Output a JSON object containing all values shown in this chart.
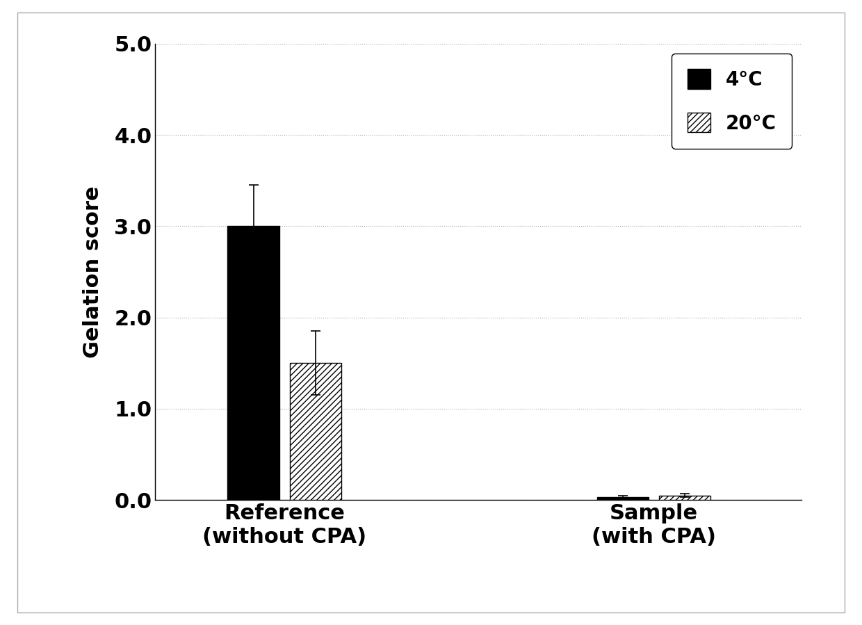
{
  "categories": [
    "Reference\n(without CPA)",
    "Sample\n(with CPA)"
  ],
  "values_4C": [
    3.0,
    0.03
  ],
  "values_20C": [
    1.5,
    0.05
  ],
  "error_4C": [
    0.45,
    0.02
  ],
  "error_20C": [
    0.35,
    0.02
  ],
  "bar_color_4C": "#000000",
  "bar_color_20C": "#ffffff",
  "hatch_20C": "////",
  "ylabel": "Gelation score",
  "ylim": [
    0.0,
    5.0
  ],
  "yticks": [
    0.0,
    1.0,
    2.0,
    3.0,
    4.0,
    5.0
  ],
  "legend_labels": [
    "4°C",
    "20°C"
  ],
  "bar_width": 0.28,
  "background_color": "#ffffff",
  "grid_color": "#aaaaaa",
  "tick_labelsize": 22,
  "axis_labelsize": 22,
  "legend_fontsize": 20,
  "xlabel_fontsize": 22
}
